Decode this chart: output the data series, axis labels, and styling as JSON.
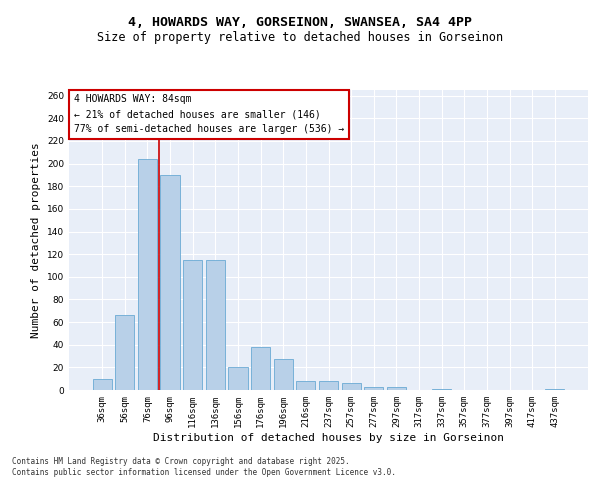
{
  "title_line1": "4, HOWARDS WAY, GORSEINON, SWANSEA, SA4 4PP",
  "title_line2": "Size of property relative to detached houses in Gorseinon",
  "xlabel": "Distribution of detached houses by size in Gorseinon",
  "ylabel": "Number of detached properties",
  "categories": [
    "36sqm",
    "56sqm",
    "76sqm",
    "96sqm",
    "116sqm",
    "136sqm",
    "156sqm",
    "176sqm",
    "196sqm",
    "216sqm",
    "237sqm",
    "257sqm",
    "277sqm",
    "297sqm",
    "317sqm",
    "337sqm",
    "357sqm",
    "377sqm",
    "397sqm",
    "417sqm",
    "437sqm"
  ],
  "values": [
    10,
    66,
    204,
    190,
    115,
    115,
    20,
    38,
    27,
    8,
    8,
    6,
    3,
    3,
    0,
    1,
    0,
    0,
    0,
    0,
    1
  ],
  "bar_color": "#b8d0e8",
  "bar_edge_color": "#6aaad4",
  "vline_x": 2.5,
  "vline_color": "#cc0000",
  "annotation_text": "4 HOWARDS WAY: 84sqm\n← 21% of detached houses are smaller (146)\n77% of semi-detached houses are larger (536) →",
  "annotation_box_color": "#ffffff",
  "annotation_box_edge_color": "#cc0000",
  "ylim": [
    0,
    265
  ],
  "yticks": [
    0,
    20,
    40,
    60,
    80,
    100,
    120,
    140,
    160,
    180,
    200,
    220,
    240,
    260
  ],
  "background_color": "#e8eef8",
  "grid_color": "#ffffff",
  "footer_text": "Contains HM Land Registry data © Crown copyright and database right 2025.\nContains public sector information licensed under the Open Government Licence v3.0.",
  "title_fontsize": 9.5,
  "subtitle_fontsize": 8.5,
  "axis_label_fontsize": 8,
  "tick_fontsize": 6.5,
  "annotation_fontsize": 7,
  "footer_fontsize": 5.5
}
